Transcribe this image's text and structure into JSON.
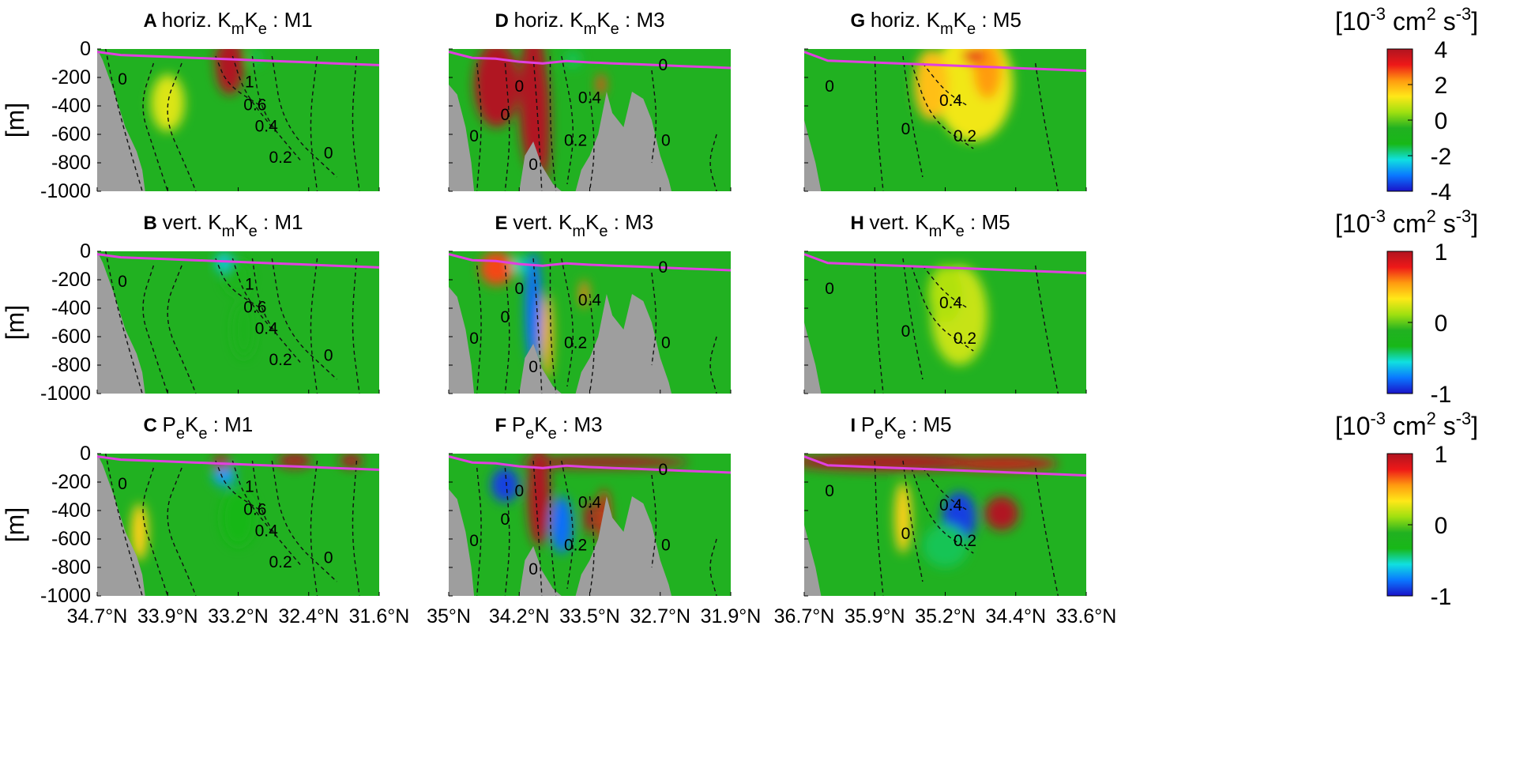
{
  "chart_data": {
    "type": "heatmap",
    "colormap": [
      "#1a12c8",
      "#0a78ff",
      "#10e0e0",
      "#18b818",
      "#21b121",
      "#a0e010",
      "#ffe818",
      "#ff9a10",
      "#ee1818",
      "#b01420"
    ],
    "colors": {
      "field": "#21b121",
      "bathymetry": "#9e9e9e",
      "mld_line": "#e040e0",
      "contour": "#111111"
    },
    "ylabel": "[m]",
    "y_ticks": [
      "0",
      "-200",
      "-400",
      "-600",
      "-800",
      "-1000"
    ],
    "ylim": [
      -1000,
      0
    ],
    "columns": [
      {
        "section": "M1",
        "xlim": [
          34.7,
          31.6
        ],
        "x_ticks": [
          "34.7°N",
          "33.9°N",
          "33.2°N",
          "32.4°N",
          "31.6°N"
        ]
      },
      {
        "section": "M3",
        "xlim": [
          35.0,
          31.9
        ],
        "x_ticks": [
          "35°N",
          "34.2°N",
          "33.5°N",
          "32.7°N",
          "31.9°N"
        ]
      },
      {
        "section": "M5",
        "xlim": [
          36.7,
          33.6
        ],
        "x_ticks": [
          "36.7°N",
          "35.9°N",
          "35.2°N",
          "34.4°N",
          "33.6°N"
        ]
      }
    ],
    "rows": [
      {
        "quantity_main": "horiz. K",
        "colorbar_range": [
          -4,
          4
        ],
        "colorbar_ticks": [
          "4",
          "2",
          "0",
          "-2",
          "-4"
        ]
      },
      {
        "quantity_main": "vert. K",
        "colorbar_range": [
          -1,
          1
        ],
        "colorbar_ticks": [
          "1",
          "0",
          "-1"
        ]
      },
      {
        "quantity_main": "P",
        "colorbar_range": [
          -1,
          1
        ],
        "colorbar_ticks": [
          "1",
          "0",
          "-1"
        ]
      }
    ],
    "panels": [
      {
        "letter": "A",
        "pre": "horiz. K",
        "s1": "m",
        "mid": "K",
        "s2": "e",
        "post": " : M1",
        "col": 0,
        "row": 0
      },
      {
        "letter": "D",
        "pre": "horiz. K",
        "s1": "m",
        "mid": "K",
        "s2": "e",
        "post": " : M3",
        "col": 1,
        "row": 0
      },
      {
        "letter": "G",
        "pre": "horiz. K",
        "s1": "m",
        "mid": "K",
        "s2": "e",
        "post": " : M5",
        "col": 2,
        "row": 0
      },
      {
        "letter": "B",
        "pre": "vert. K",
        "s1": "m",
        "mid": "K",
        "s2": "e",
        "post": " : M1",
        "col": 0,
        "row": 1
      },
      {
        "letter": "E",
        "pre": "vert. K",
        "s1": "m",
        "mid": "K",
        "s2": "e",
        "post": " : M3",
        "col": 1,
        "row": 1
      },
      {
        "letter": "H",
        "pre": "vert. K",
        "s1": "m",
        "mid": "K",
        "s2": "e",
        "post": " : M5",
        "col": 2,
        "row": 1
      },
      {
        "letter": "C",
        "pre": "P",
        "s1": "e",
        "mid": "K",
        "s2": "e",
        "post": " : M1",
        "col": 0,
        "row": 2
      },
      {
        "letter": "F",
        "pre": "P",
        "s1": "e",
        "mid": "K",
        "s2": "e",
        "post": " : M3",
        "col": 1,
        "row": 2
      },
      {
        "letter": "I",
        "pre": "P",
        "s1": "e",
        "mid": "K",
        "s2": "e",
        "post": " : M5",
        "col": 2,
        "row": 2
      }
    ],
    "contour_labels": {
      "M1": [
        "0",
        "1",
        "0.6",
        "0.4",
        "0.2",
        "0"
      ],
      "M3": [
        "0",
        "0",
        "0.4",
        "0.2",
        "0",
        "0",
        "0",
        "0"
      ],
      "M5": [
        "0",
        "0.4",
        "0.2",
        "0"
      ]
    },
    "colorbar_unit": {
      "base": "[10",
      "exp1": "-3",
      "mid": " cm",
      "exp2": "2",
      "tail": " s",
      "exp3": "-3",
      "close": "]"
    }
  }
}
